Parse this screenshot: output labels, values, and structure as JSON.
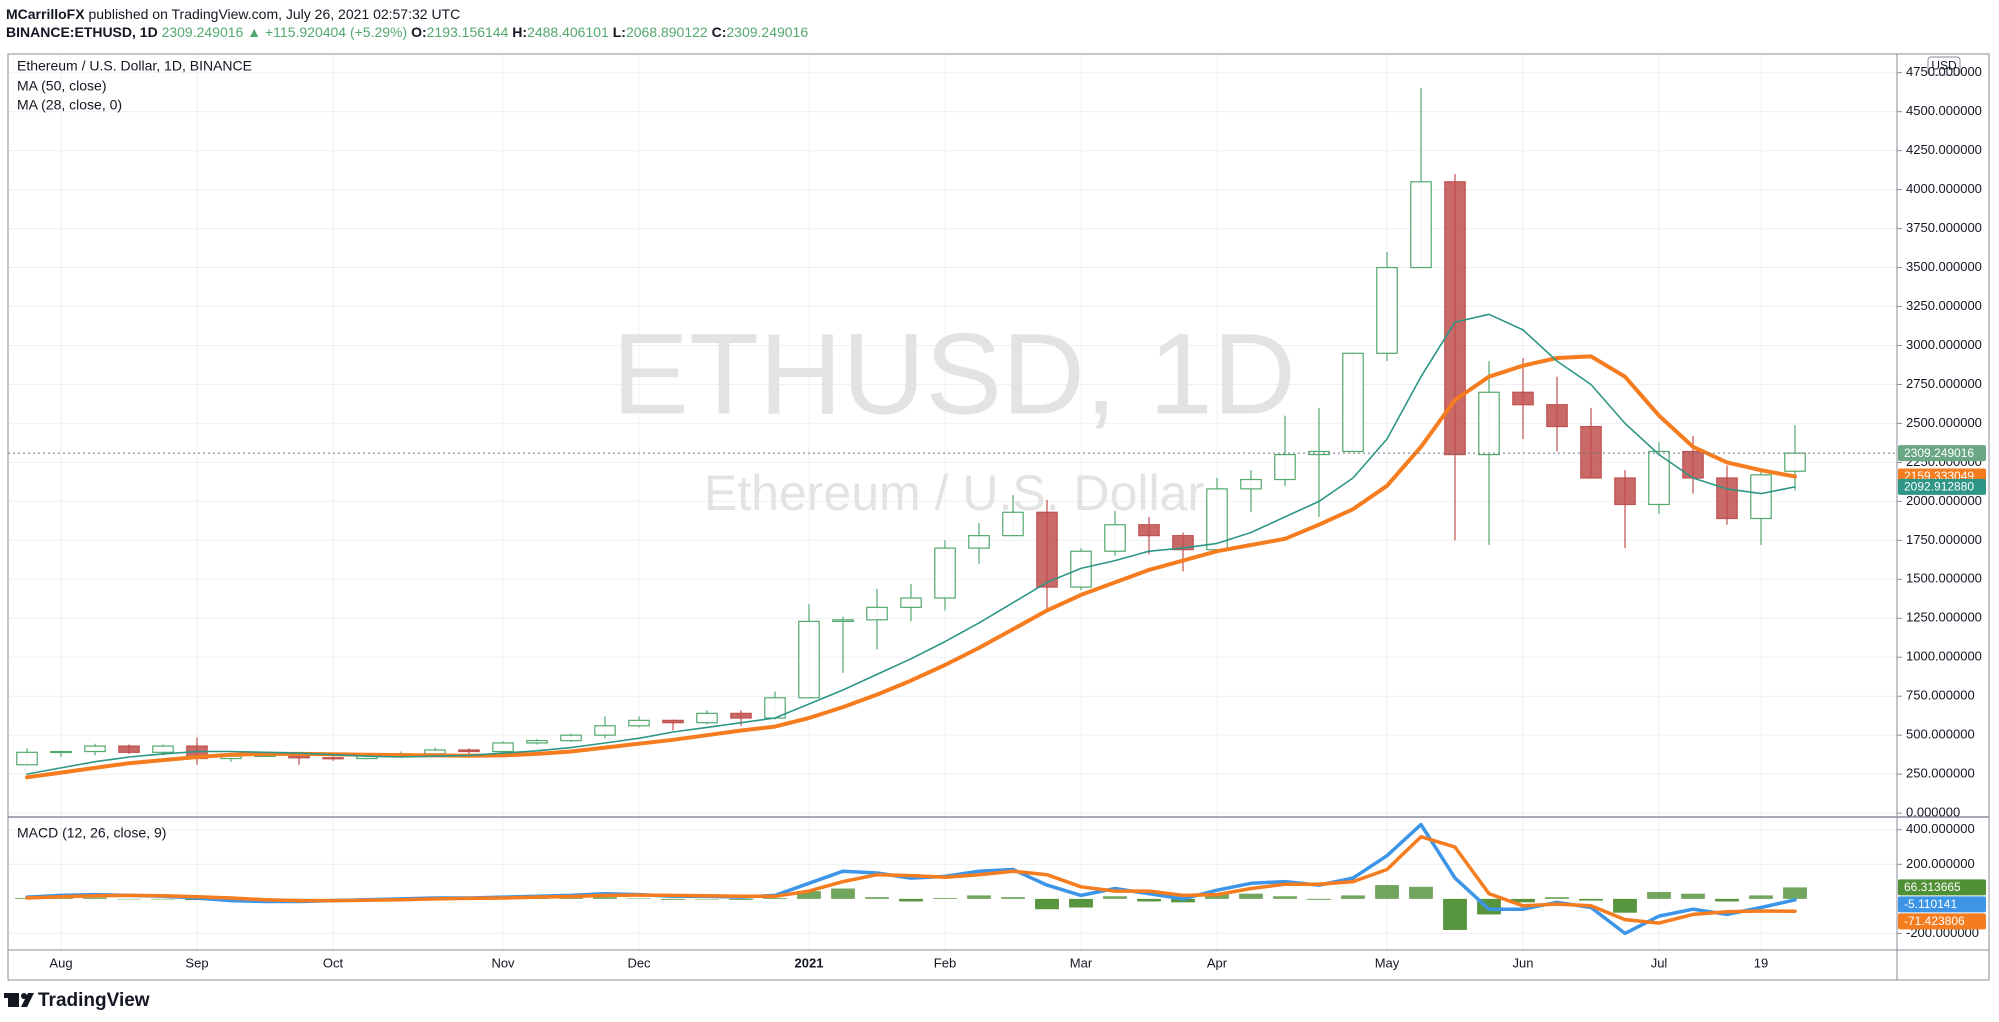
{
  "header": {
    "author": "MCarrilloFX",
    "published": "published on TradingView.com, July 26, 2021 02:57:32 UTC",
    "symbol": "BINANCE:ETHUSD, 1D",
    "change": "▲ +115.920404 (+5.29%)",
    "ohlc_labels": [
      "O:",
      "H:",
      "L:",
      "C:"
    ],
    "currency": "USD"
  },
  "chart_data": [
    {
      "type": "candlestick",
      "title": "Ethereum / U.S. Dollar, 1D, BINANCE",
      "watermark": "ETHUSD, 1D",
      "watermark_subtitle": "Ethereum / U.S. Dollar",
      "categories": [
        null,
        "Aug",
        null,
        null,
        null,
        "Sep",
        null,
        null,
        null,
        "Oct",
        null,
        null,
        null,
        null,
        "Nov",
        null,
        null,
        null,
        "Dec",
        null,
        null,
        null,
        null,
        "2021",
        null,
        null,
        null,
        "Feb",
        null,
        null,
        null,
        "Mar",
        null,
        null,
        null,
        "Apr",
        null,
        null,
        null,
        null,
        "May",
        null,
        null,
        null,
        "Jun",
        null,
        null,
        null,
        "Jul",
        null,
        null,
        "19",
        null
      ],
      "open": [
        310,
        390,
        395,
        430,
        390,
        430,
        350,
        365,
        370,
        355,
        350,
        370,
        380,
        405,
        395,
        450,
        465,
        500,
        560,
        595,
        580,
        640,
        610,
        740,
        1230,
        1240,
        1320,
        1380,
        1700,
        1780,
        1930,
        1450,
        1680,
        1850,
        1780,
        1690,
        2080,
        2140,
        2300,
        2320,
        2950,
        3500,
        4050,
        2300,
        2700,
        2620,
        2480,
        2150,
        1980,
        2320,
        2150,
        1890,
        2193.156144
      ],
      "high": [
        415,
        400,
        445,
        440,
        440,
        485,
        375,
        390,
        375,
        365,
        375,
        395,
        420,
        415,
        460,
        475,
        510,
        620,
        620,
        600,
        660,
        660,
        780,
        1340,
        1260,
        1440,
        1470,
        1750,
        1860,
        2040,
        2010,
        1700,
        1940,
        1900,
        1800,
        2150,
        2200,
        2550,
        2600,
        2950,
        3600,
        4650,
        4100,
        2900,
        2920,
        2800,
        2600,
        2200,
        2380,
        2420,
        2230,
        2200,
        2488.406101
      ],
      "low": [
        305,
        360,
        370,
        380,
        370,
        310,
        330,
        360,
        310,
        335,
        345,
        365,
        365,
        375,
        380,
        440,
        455,
        480,
        550,
        530,
        570,
        560,
        600,
        740,
        900,
        1050,
        1230,
        1300,
        1600,
        1780,
        1300,
        1430,
        1650,
        1660,
        1550,
        1670,
        1930,
        2100,
        1900,
        2320,
        2900,
        3500,
        1750,
        1720,
        2400,
        2320,
        2150,
        1700,
        1920,
        2050,
        1850,
        1720,
        2068.890122
      ],
      "close": [
        390,
        395,
        430,
        390,
        430,
        350,
        365,
        370,
        355,
        350,
        370,
        380,
        405,
        395,
        450,
        465,
        500,
        560,
        595,
        580,
        640,
        610,
        740,
        1230,
        1240,
        1320,
        1380,
        1700,
        1780,
        1930,
        1450,
        1680,
        1850,
        1780,
        1690,
        2080,
        2140,
        2300,
        2320,
        2950,
        3500,
        4050,
        2300,
        2700,
        2620,
        2480,
        2150,
        1980,
        2320,
        2150,
        1890,
        2170,
        2309.249016
      ],
      "up_color": "#53a86e",
      "down_color": "#c0504d",
      "last_color": "#6aa784",
      "series": [
        {
          "name": "MA (50, close)",
          "color": "#f57c1f",
          "width": 4,
          "values": [
            230,
            260,
            290,
            320,
            340,
            360,
            375,
            380,
            380,
            378,
            375,
            372,
            370,
            368,
            370,
            380,
            395,
            420,
            445,
            470,
            500,
            530,
            555,
            610,
            680,
            760,
            850,
            950,
            1060,
            1180,
            1300,
            1400,
            1480,
            1560,
            1620,
            1680,
            1720,
            1760,
            1850,
            1950,
            2100,
            2350,
            2650,
            2800,
            2870,
            2920,
            2930,
            2800,
            2550,
            2350,
            2250,
            2200,
            2159.333049
          ],
          "last_label": "2159.333049"
        },
        {
          "name": "MA (28, close, 0)",
          "color": "#2e9686",
          "width": 1.6,
          "values": [
            250,
            290,
            330,
            360,
            380,
            395,
            395,
            390,
            385,
            375,
            365,
            360,
            365,
            370,
            385,
            400,
            420,
            450,
            480,
            520,
            550,
            580,
            610,
            700,
            790,
            890,
            990,
            1100,
            1220,
            1350,
            1480,
            1570,
            1620,
            1680,
            1700,
            1730,
            1800,
            1900,
            2000,
            2150,
            2400,
            2800,
            3150,
            3200,
            3100,
            2900,
            2750,
            2500,
            2300,
            2150,
            2080,
            2050,
            2092.91288
          ],
          "last_label": "2092.912880"
        }
      ],
      "ylim": [
        -25,
        4870
      ],
      "yticks": [
        {
          "value": 0,
          "label": "0.000000"
        },
        {
          "value": 250,
          "label": "250.000000"
        },
        {
          "value": 500,
          "label": "500.000000"
        },
        {
          "value": 750,
          "label": "750.000000"
        },
        {
          "value": 1000,
          "label": "1000.000000"
        },
        {
          "value": 1250,
          "label": "1250.000000"
        },
        {
          "value": 1500,
          "label": "1500.000000"
        },
        {
          "value": 1750,
          "label": "1750.000000"
        },
        {
          "value": 2000,
          "label": "2000.000000"
        },
        {
          "value": 2250,
          "label": "2250.000000"
        },
        {
          "value": 2500,
          "label": "2500.000000"
        },
        {
          "value": 2750,
          "label": "2750.000000"
        },
        {
          "value": 3000,
          "label": "3000.000000"
        },
        {
          "value": 3250,
          "label": "3250.000000"
        },
        {
          "value": 3500,
          "label": "3500.000000"
        },
        {
          "value": 3750,
          "label": "3750.000000"
        },
        {
          "value": 4000,
          "label": "4000.000000"
        },
        {
          "value": 4250,
          "label": "4250.000000"
        },
        {
          "value": 4500,
          "label": "4500.000000"
        },
        {
          "value": 4750,
          "label": "4750.000000"
        }
      ],
      "grid": true
    },
    {
      "type": "macd",
      "title": "MACD (12, 26, close, 9)",
      "series": [
        {
          "style": "histogram",
          "color": "#4f8f35",
          "values": [
            5,
            8,
            7,
            0,
            -3,
            -7,
            -15,
            -10,
            -5,
            0,
            3,
            5,
            5,
            2,
            5,
            5,
            6,
            10,
            3,
            -5,
            -3,
            -5,
            5,
            45,
            60,
            10,
            -15,
            5,
            20,
            10,
            -60,
            -50,
            15,
            -15,
            -20,
            25,
            30,
            15,
            -5,
            20,
            80,
            70,
            -180,
            -90,
            -20,
            10,
            -10,
            -80,
            40,
            30,
            -15,
            20,
            66.313665
          ],
          "last_label": "66.313665"
        },
        {
          "style": "line",
          "color": "#3d95e8",
          "width": 3.5,
          "values": [
            10,
            20,
            25,
            20,
            15,
            5,
            -10,
            -15,
            -15,
            -10,
            -5,
            0,
            5,
            5,
            10,
            15,
            20,
            30,
            25,
            15,
            15,
            10,
            20,
            90,
            160,
            150,
            120,
            130,
            160,
            170,
            80,
            20,
            60,
            30,
            0,
            50,
            90,
            100,
            80,
            120,
            250,
            430,
            120,
            -60,
            -60,
            -20,
            -50,
            -200,
            -100,
            -60,
            -90,
            -50,
            -5.110141
          ],
          "last_label": "-5.110141"
        },
        {
          "style": "line",
          "color": "#f57c1f",
          "width": 3.5,
          "values": [
            5,
            12,
            18,
            20,
            18,
            12,
            5,
            -5,
            -10,
            -10,
            -8,
            -5,
            0,
            3,
            5,
            10,
            14,
            20,
            22,
            20,
            18,
            15,
            15,
            45,
            100,
            140,
            135,
            125,
            140,
            160,
            140,
            70,
            45,
            45,
            20,
            25,
            60,
            85,
            85,
            100,
            170,
            360,
            300,
            30,
            -40,
            -30,
            -40,
            -120,
            -140,
            -90,
            -75,
            -70,
            -71.423806
          ],
          "last_label": "-71.423806"
        }
      ],
      "ylim": [
        -296,
        474
      ],
      "yticks": [
        {
          "value": 400,
          "label": "400.000000"
        },
        {
          "value": 200,
          "label": "200.000000"
        },
        {
          "value": -200,
          "label": "-200.000000"
        }
      ],
      "grid": true
    }
  ],
  "footer": {
    "brand": "TradingView"
  }
}
